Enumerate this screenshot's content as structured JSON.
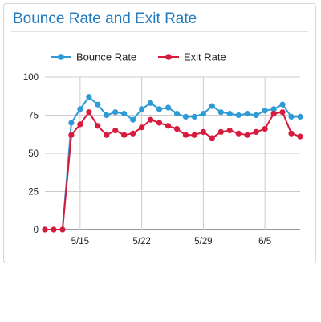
{
  "card": {
    "title": "Bounce Rate and Exit Rate"
  },
  "chart_data": {
    "type": "line",
    "title": "Bounce Rate and Exit Rate",
    "xlabel": "",
    "ylabel": "",
    "ylim": [
      0,
      100
    ],
    "y_ticks": [
      0,
      25,
      50,
      75,
      100
    ],
    "x_tick_labels": [
      {
        "index": 4,
        "label": "5/15"
      },
      {
        "index": 11,
        "label": "5/22"
      },
      {
        "index": 18,
        "label": "5/29"
      },
      {
        "index": 25,
        "label": "6/5"
      }
    ],
    "grid": true,
    "legend_position": "top-left",
    "series": [
      {
        "name": "Bounce Rate",
        "color": "#2f9bd6",
        "values": [
          0,
          0,
          0,
          70,
          79,
          87,
          82,
          75,
          77,
          76,
          72,
          79,
          83,
          79,
          80,
          76,
          74,
          74,
          76,
          81,
          77,
          76,
          75,
          76,
          75,
          78,
          79,
          82,
          74,
          74
        ]
      },
      {
        "name": "Exit Rate",
        "color": "#d81a3c",
        "values": [
          0,
          0,
          0,
          62,
          69,
          77,
          68,
          62,
          65,
          62,
          63,
          67,
          72,
          70,
          68,
          66,
          62,
          62,
          64,
          60,
          64,
          65,
          63,
          62,
          64,
          66,
          76,
          77,
          63,
          61
        ]
      }
    ]
  }
}
